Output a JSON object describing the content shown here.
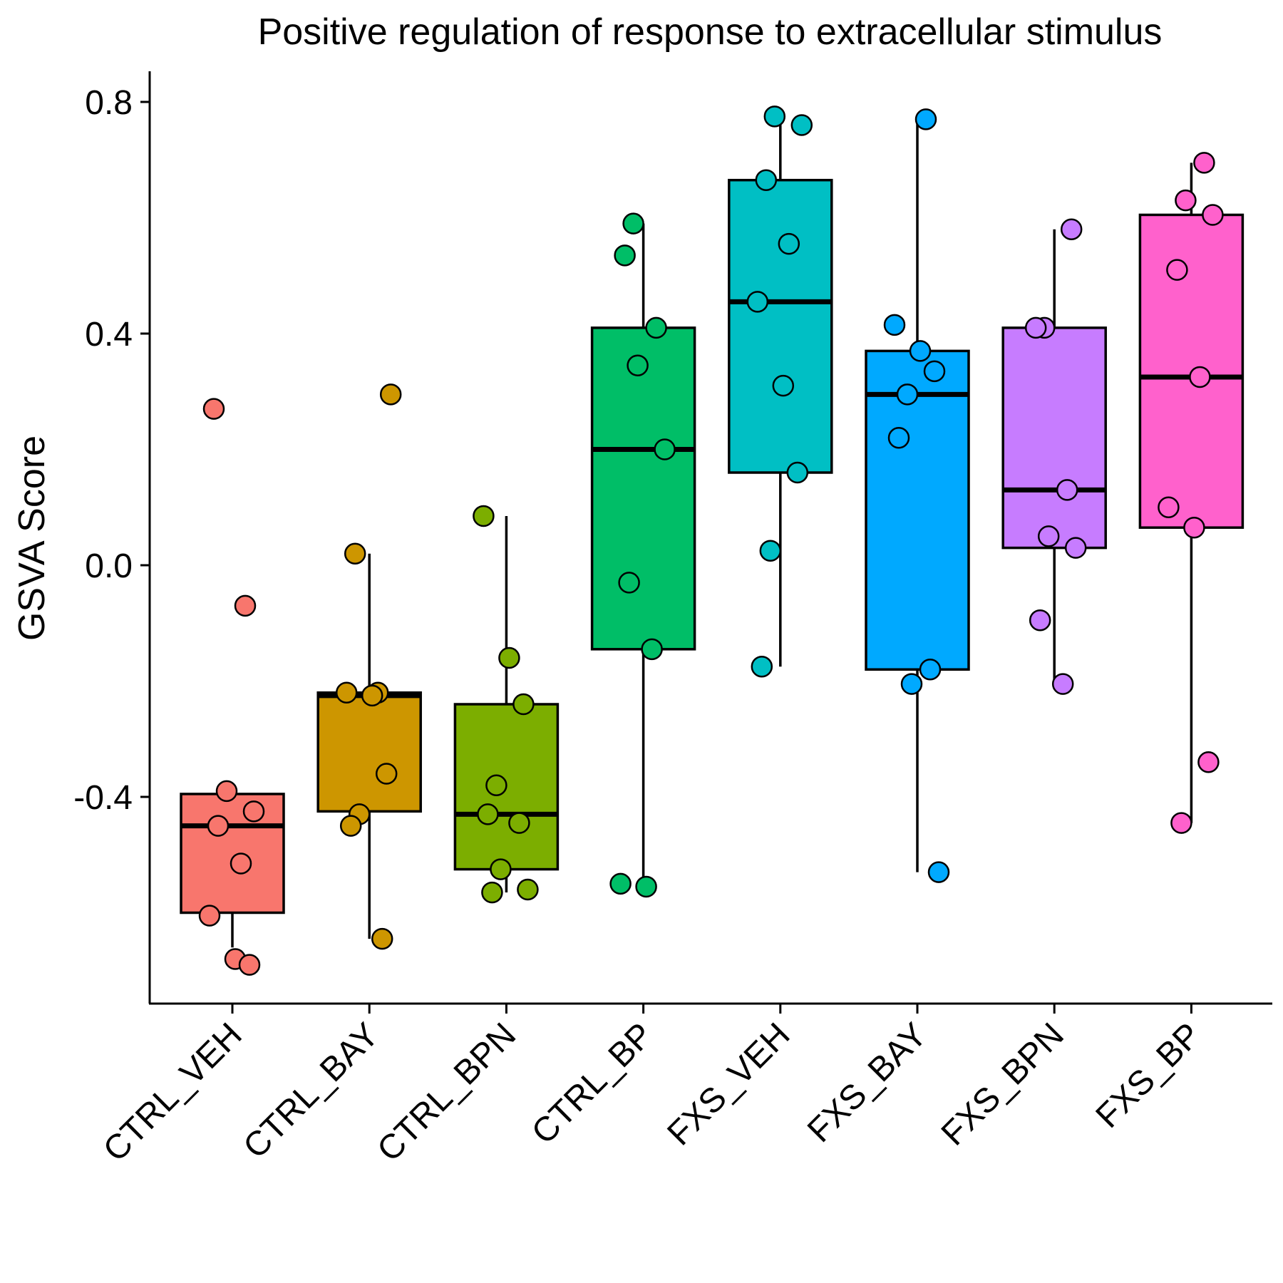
{
  "chart_data": {
    "type": "box",
    "title": "Positive regulation of response to extracellular stimulus",
    "xlabel": "",
    "ylabel": "GSVA Score",
    "ylim": [
      -0.75,
      0.85
    ],
    "yticks": [
      0.8,
      0.4,
      0.0,
      -0.4
    ],
    "ytick_labels": [
      "0.8",
      "0.4",
      "0.0",
      "-0.4"
    ],
    "grid": false,
    "legend": "none",
    "groups": [
      {
        "name": "CTRL_VEH",
        "color": "#F8766D",
        "box": {
          "whisker_low": -0.66,
          "q1": -0.6,
          "median": -0.45,
          "q3": -0.395,
          "whisker_high": -0.395
        },
        "points": [
          0.27,
          -0.07,
          -0.39,
          -0.425,
          -0.45,
          -0.515,
          -0.605,
          -0.68,
          -0.69
        ]
      },
      {
        "name": "CTRL_BAY",
        "color": "#CD9600",
        "box": {
          "whisker_low": -0.645,
          "q1": -0.425,
          "median": -0.225,
          "q3": -0.22,
          "whisker_high": 0.02
        },
        "points": [
          0.295,
          0.02,
          -0.22,
          -0.22,
          -0.225,
          -0.36,
          -0.43,
          -0.45,
          -0.645
        ]
      },
      {
        "name": "CTRL_BPN",
        "color": "#7CAE00",
        "box": {
          "whisker_low": -0.565,
          "q1": -0.525,
          "median": -0.43,
          "q3": -0.24,
          "whisker_high": 0.085
        },
        "points": [
          0.085,
          -0.16,
          -0.24,
          -0.38,
          -0.43,
          -0.445,
          -0.525,
          -0.56,
          -0.565
        ]
      },
      {
        "name": "CTRL_BP",
        "color": "#00BE67",
        "box": {
          "whisker_low": -0.55,
          "q1": -0.145,
          "median": 0.2,
          "q3": 0.41,
          "whisker_high": 0.59
        },
        "points": [
          0.59,
          0.535,
          0.41,
          0.345,
          0.2,
          -0.03,
          -0.145,
          -0.55,
          -0.555
        ]
      },
      {
        "name": "FXS_VEH",
        "color": "#00BFC4",
        "box": {
          "whisker_low": -0.175,
          "q1": 0.16,
          "median": 0.455,
          "q3": 0.665,
          "whisker_high": 0.775
        },
        "points": [
          0.775,
          0.76,
          0.665,
          0.555,
          0.455,
          0.31,
          0.16,
          0.025,
          -0.175
        ]
      },
      {
        "name": "FXS_BAY",
        "color": "#00A9FF",
        "box": {
          "whisker_low": -0.53,
          "q1": -0.18,
          "median": 0.295,
          "q3": 0.37,
          "whisker_high": 0.77
        },
        "points": [
          0.77,
          0.415,
          0.37,
          0.335,
          0.295,
          0.22,
          -0.18,
          -0.205,
          -0.53
        ]
      },
      {
        "name": "FXS_BPN",
        "color": "#C77CFF",
        "box": {
          "whisker_low": -0.205,
          "q1": 0.03,
          "median": 0.13,
          "q3": 0.41,
          "whisker_high": 0.58
        },
        "points": [
          0.58,
          0.41,
          0.41,
          0.13,
          0.05,
          0.03,
          -0.095,
          -0.205
        ]
      },
      {
        "name": "FXS_BP",
        "color": "#FF61CC",
        "box": {
          "whisker_low": -0.445,
          "q1": 0.065,
          "median": 0.325,
          "q3": 0.605,
          "whisker_high": 0.695
        },
        "points": [
          0.695,
          0.63,
          0.605,
          0.51,
          0.325,
          0.1,
          0.065,
          -0.34,
          -0.445
        ]
      }
    ]
  }
}
